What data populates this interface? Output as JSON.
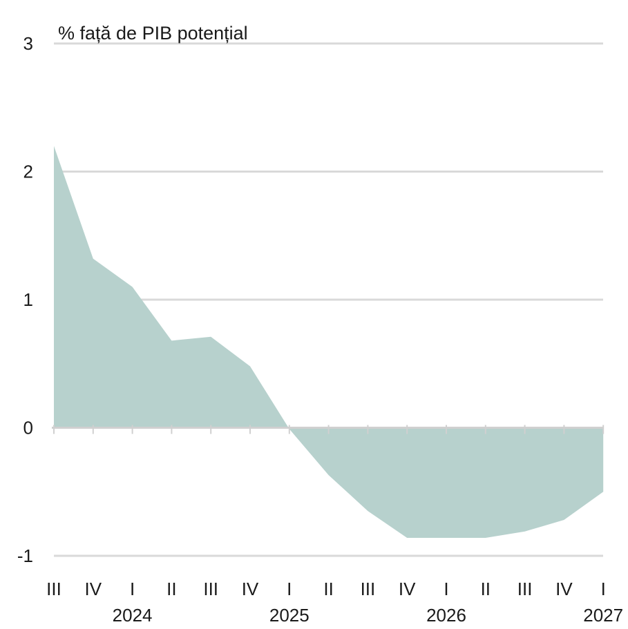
{
  "chart_data": {
    "type": "area",
    "title": "",
    "unit_label": "% față de PIB potențial",
    "xlabel": "",
    "ylabel": "",
    "ylim": [
      -1,
      3
    ],
    "yticks": [
      "3",
      "2",
      "1",
      "0",
      "-1"
    ],
    "grid": true,
    "color": "#b7d1cd",
    "quarter_labels": [
      "III",
      "IV",
      "I",
      "II",
      "III",
      "IV",
      "I",
      "II",
      "III",
      "IV",
      "I",
      "II",
      "III",
      "IV",
      "I"
    ],
    "year_labels": [
      {
        "label": "2024",
        "quarter_index": 2
      },
      {
        "label": "2025",
        "quarter_index": 6
      },
      {
        "label": "2026",
        "quarter_index": 10
      },
      {
        "label": "2027",
        "quarter_index": 14
      }
    ],
    "series": [
      {
        "values": [
          2.2,
          1.32,
          1.1,
          0.68,
          0.71,
          0.48,
          -0.01,
          -0.37,
          -0.65,
          -0.86,
          -0.86,
          -0.86,
          -0.81,
          -0.72,
          -0.5
        ]
      }
    ]
  }
}
